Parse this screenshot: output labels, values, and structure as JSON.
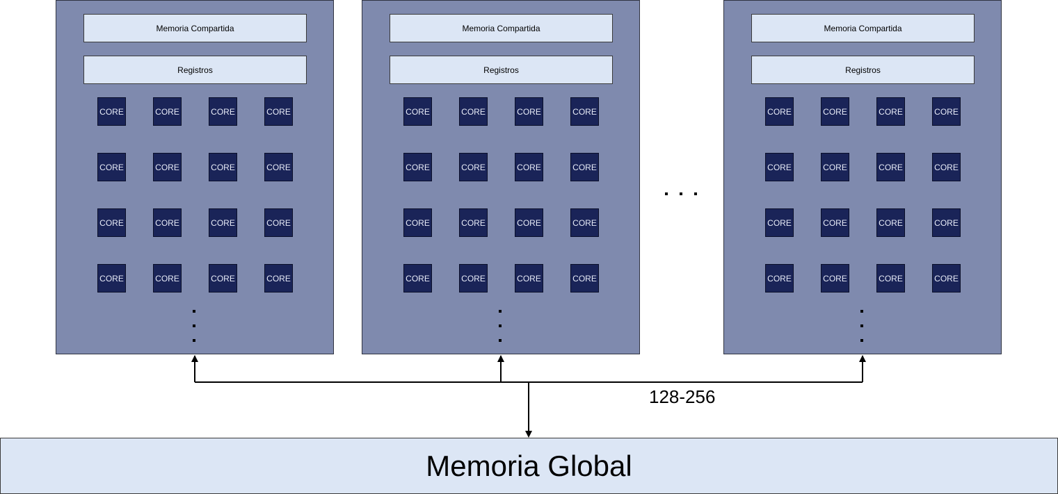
{
  "sm_blocks": [
    {
      "shared_label": "Memoria Compartida",
      "registers_label": "Registros"
    },
    {
      "shared_label": "Memoria Compartida",
      "registers_label": "Registros"
    },
    {
      "shared_label": "Memoria Compartida",
      "registers_label": "Registros"
    }
  ],
  "core_label": "CORE",
  "bus_label": "128-256",
  "global_memory_label": "Memoria Global",
  "colors": {
    "sm_fill": "#7f8aae",
    "memory_fill": "#dce6f5",
    "core_fill": "#1a2458"
  }
}
